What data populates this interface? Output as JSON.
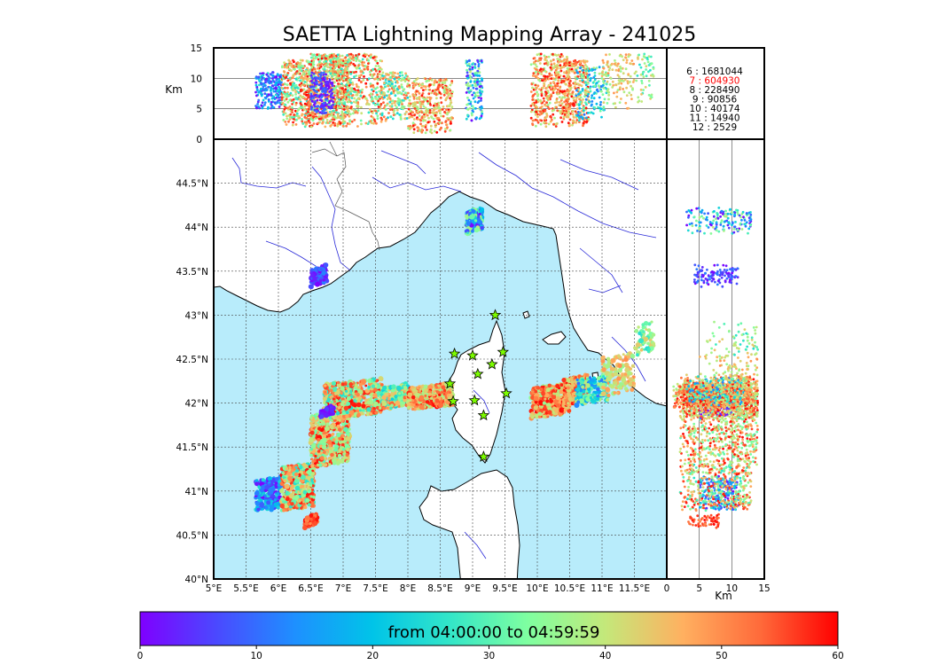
{
  "title": "SAETTA Lightning Mapping Array - 241025",
  "chart_data": {
    "type": "scatter",
    "title": "SAETTA Lightning Mapping Array - 241025",
    "colors": {
      "sea": "#b8ecfb",
      "land": "#ffffff",
      "coast": "#000000",
      "rivers": "#2a2ad8",
      "borders": "#555555",
      "grid": "#444444",
      "station": "#7cfc00"
    },
    "top_panel": {
      "ylabel": "Km",
      "yticks": [
        "0",
        "5",
        "10",
        "15"
      ],
      "ylim": [
        0,
        15
      ]
    },
    "right_panel": {
      "xlabel": "Km",
      "xticks": [
        "0",
        "5",
        "10",
        "15"
      ],
      "xlim": [
        0,
        15
      ]
    },
    "map": {
      "xlim": [
        5,
        12
      ],
      "ylim": [
        40,
        45
      ],
      "xticks": [
        "5°E",
        "5.5°E",
        "6°E",
        "6.5°E",
        "7°E",
        "7.5°E",
        "8°E",
        "8.5°E",
        "9°E",
        "9.5°E",
        "10°E",
        "10.5°E",
        "11°E",
        "11.5°E"
      ],
      "yticks": [
        "40°N",
        "40.5°N",
        "41°N",
        "41.5°N",
        "42°N",
        "42.5°N",
        "43°N",
        "43.5°N",
        "44°N",
        "44.5°N"
      ],
      "grid": true
    },
    "station_counts": [
      {
        "stations": "6",
        "sep": ":",
        "count": "1681044",
        "color": "#000000"
      },
      {
        "stations": "7",
        "sep": ":",
        "count": "604930",
        "color": "#ff0000"
      },
      {
        "stations": "8",
        "sep": ":",
        "count": "228490",
        "color": "#000000"
      },
      {
        "stations": "9",
        "sep": ":",
        "count": "90856",
        "color": "#000000"
      },
      {
        "stations": "10",
        "sep": ":",
        "count": "40174",
        "color": "#000000"
      },
      {
        "stations": "11",
        "sep": ":",
        "count": "14940",
        "color": "#000000"
      },
      {
        "stations": "12",
        "sep": ":",
        "count": "2529",
        "color": "#000000"
      }
    ],
    "stations_lonlat": [
      [
        9.35,
        43.0
      ],
      [
        8.72,
        42.56
      ],
      [
        9.0,
        42.54
      ],
      [
        9.47,
        42.58
      ],
      [
        9.3,
        42.44
      ],
      [
        9.08,
        42.33
      ],
      [
        8.65,
        42.22
      ],
      [
        9.52,
        42.11
      ],
      [
        8.7,
        42.02
      ],
      [
        9.03,
        42.03
      ],
      [
        9.17,
        41.86
      ],
      [
        9.17,
        41.39
      ]
    ],
    "flash_clusters": [
      {
        "lon": [
          5.65,
          6.05
        ],
        "lat": [
          40.78,
          41.15
        ],
        "t": [
          0,
          25
        ],
        "alt": [
          5,
          11
        ],
        "n": 220
      },
      {
        "lon": [
          6.05,
          6.55
        ],
        "lat": [
          40.8,
          41.3
        ],
        "t": [
          25,
          60
        ],
        "alt": [
          2,
          13
        ],
        "n": 420
      },
      {
        "lon": [
          6.4,
          6.6
        ],
        "lat": [
          40.6,
          40.72
        ],
        "t": [
          50,
          60
        ],
        "alt": [
          3,
          8
        ],
        "n": 60
      },
      {
        "lon": [
          6.5,
          7.1
        ],
        "lat": [
          41.3,
          41.9
        ],
        "t": [
          30,
          60
        ],
        "alt": [
          2,
          14
        ],
        "n": 520
      },
      {
        "lon": [
          6.7,
          7.6
        ],
        "lat": [
          41.85,
          42.25
        ],
        "t": [
          25,
          60
        ],
        "alt": [
          2,
          14
        ],
        "n": 560
      },
      {
        "lon": [
          6.65,
          6.85
        ],
        "lat": [
          41.85,
          41.95
        ],
        "t": [
          0,
          6
        ],
        "alt": [
          5,
          10
        ],
        "n": 60
      },
      {
        "lon": [
          7.6,
          8.0
        ],
        "lat": [
          41.95,
          42.2
        ],
        "t": [
          20,
          55
        ],
        "alt": [
          3,
          11
        ],
        "n": 200
      },
      {
        "lon": [
          8.0,
          8.7
        ],
        "lat": [
          41.95,
          42.2
        ],
        "t": [
          35,
          60
        ],
        "alt": [
          1,
          10
        ],
        "n": 380
      },
      {
        "lon": [
          8.9,
          9.15
        ],
        "lat": [
          43.95,
          44.2
        ],
        "t": [
          0,
          40
        ],
        "alt": [
          3,
          13
        ],
        "n": 160
      },
      {
        "lon": [
          6.5,
          6.75
        ],
        "lat": [
          43.35,
          43.55
        ],
        "t": [
          0,
          12
        ],
        "alt": [
          4,
          11
        ],
        "n": 120
      },
      {
        "lon": [
          9.9,
          10.5
        ],
        "lat": [
          41.85,
          42.2
        ],
        "t": [
          35,
          60
        ],
        "alt": [
          2,
          14
        ],
        "n": 420
      },
      {
        "lon": [
          10.4,
          10.8
        ],
        "lat": [
          42.0,
          42.3
        ],
        "t": [
          40,
          60
        ],
        "alt": [
          2,
          13
        ],
        "n": 260
      },
      {
        "lon": [
          10.6,
          11.1
        ],
        "lat": [
          42.0,
          42.3
        ],
        "t": [
          10,
          40
        ],
        "alt": [
          3,
          12
        ],
        "n": 160
      },
      {
        "lon": [
          11.0,
          11.5
        ],
        "lat": [
          42.1,
          42.55
        ],
        "t": [
          35,
          50
        ],
        "alt": [
          5,
          14
        ],
        "n": 120
      },
      {
        "lon": [
          11.5,
          11.8
        ],
        "lat": [
          42.55,
          42.9
        ],
        "t": [
          25,
          45
        ],
        "alt": [
          6,
          14
        ],
        "n": 60
      }
    ],
    "colorbar": {
      "label": "from 04:00:00 to 04:59:59",
      "ticks": [
        "0",
        "10",
        "20",
        "30",
        "40",
        "50",
        "60"
      ],
      "range": [
        0,
        60
      ],
      "colors": [
        "#7f00ff",
        "#4a4aff",
        "#1e90ff",
        "#00c4e8",
        "#33e6c8",
        "#7fffa0",
        "#c4e87a",
        "#ffb060",
        "#ff6a3a",
        "#ff0000"
      ]
    }
  }
}
